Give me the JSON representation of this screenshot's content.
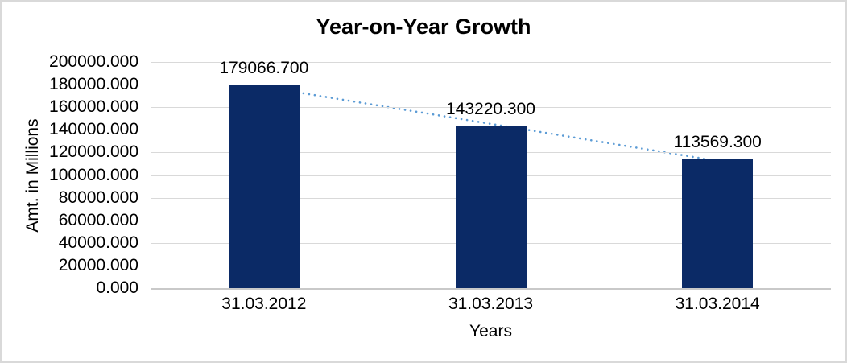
{
  "window": {
    "background": "#ffffff",
    "border_color": "#d9d9d9",
    "gridline_color": "#d9d9d9",
    "axis_line_color": "#c9c9c9",
    "text_color": "#000000"
  },
  "chart_data": {
    "type": "bar",
    "title": "Year-on-Year Growth",
    "xlabel": "Years",
    "ylabel": "Amt. in Millions",
    "categories": [
      "31.03.2012",
      "31.03.2013",
      "31.03.2014"
    ],
    "values": [
      179066.7,
      143220.3,
      113569.3
    ],
    "data_labels": [
      "179066.700",
      "143220.300",
      "113569.300"
    ],
    "ylim": [
      0,
      200000
    ],
    "ytick_step": 20000,
    "ytick_values": [
      0,
      20000,
      40000,
      60000,
      80000,
      100000,
      120000,
      140000,
      160000,
      180000,
      200000
    ],
    "ytick_labels": [
      "0.000",
      "20000.000",
      "40000.000",
      "60000.000",
      "80000.000",
      "100000.000",
      "120000.000",
      "140000.000",
      "160000.000",
      "180000.000",
      "200000.000"
    ],
    "grid": true,
    "legend": "none",
    "bar_color": "#0b2a66",
    "trendline": {
      "type": "linear",
      "style": "dotted",
      "color": "#5b9bd5",
      "points": [
        178034.1,
        145285.4,
        112536.8
      ]
    }
  }
}
